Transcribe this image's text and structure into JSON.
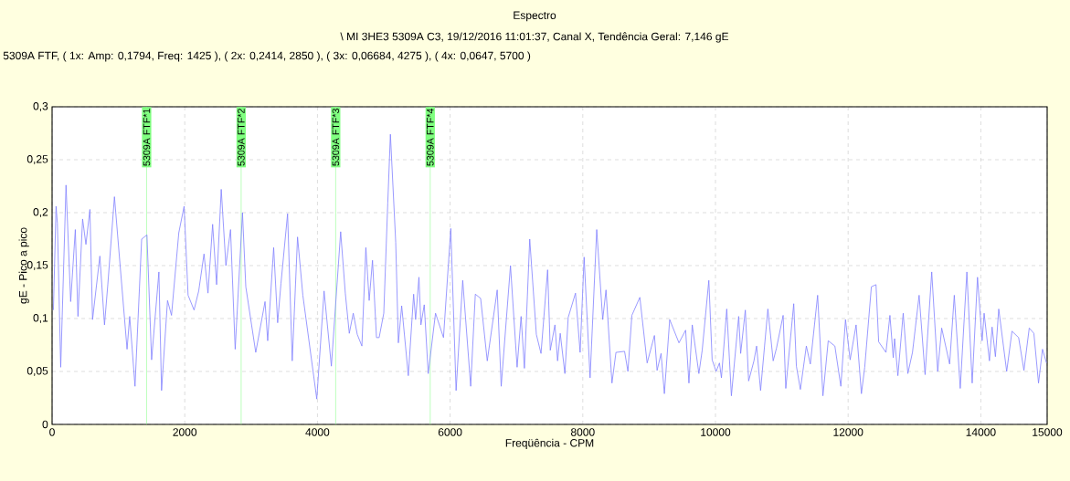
{
  "chart_data": {
    "type": "line",
    "title": "Espectro",
    "subtitle": "\\ MI 3HE3 5309A C3, 19/12/2016 11:01:37, Canal X, Tendência Geral: 7,146 gE",
    "annotations": [
      "5309A FTF, ( 1x: Amp: 0,1794, Freq: 1425 ), ( 2x: 0,2414, 2850 ), ( 3x: 0,06684, 4275 ), ( 4x: 0,0647, 5700 )"
    ],
    "xlabel": "Freqüência - CPM",
    "ylabel": "gE - Pico a pico",
    "color": "#8080ff",
    "grid": true,
    "xlim": [
      0,
      15000
    ],
    "ylim": [
      0,
      0.3
    ],
    "xticks": [
      0,
      2000,
      4000,
      6000,
      8000,
      10000,
      12000,
      14000,
      15000
    ],
    "yticks": [
      0,
      {
        "value": 0.05,
        "label": "0,05"
      },
      {
        "value": 0.1,
        "label": "0,1"
      },
      {
        "value": 0.15,
        "label": "0,15"
      },
      {
        "value": 0.2,
        "label": "0,2"
      },
      {
        "value": 0.25,
        "label": "0,25"
      },
      {
        "value": 0.3,
        "label": "0,3"
      }
    ],
    "ref_lines": [
      {
        "axis": "x",
        "value": 1425,
        "label": "5309A FTF*1",
        "color": "#80ff80"
      },
      {
        "axis": "x",
        "value": 2850,
        "label": "5309A FTF*2",
        "color": "#80ff80"
      },
      {
        "axis": "x",
        "value": 4275,
        "label": "5309A FTF*3",
        "color": "#80ff80"
      },
      {
        "axis": "x",
        "value": 5700,
        "label": "5309A FTF*4",
        "color": "#80ff80"
      }
    ],
    "x": [
      20,
      60,
      80,
      130,
      210,
      280,
      350,
      390,
      460,
      510,
      570,
      610,
      720,
      790,
      840,
      940,
      1130,
      1170,
      1250,
      1350,
      1430,
      1500,
      1610,
      1650,
      1740,
      1800,
      1910,
      1990,
      2050,
      2140,
      2210,
      2290,
      2350,
      2420,
      2480,
      2550,
      2620,
      2690,
      2760,
      2870,
      2920,
      3070,
      3210,
      3250,
      3340,
      3400,
      3450,
      3550,
      3620,
      3700,
      3780,
      3990,
      4100,
      4210,
      4350,
      4420,
      4480,
      4540,
      4600,
      4670,
      4730,
      4780,
      4830,
      4890,
      4930,
      5000,
      5060,
      5100,
      5180,
      5220,
      5270,
      5370,
      5450,
      5480,
      5530,
      5560,
      5610,
      5670,
      5780,
      5900,
      6010,
      6090,
      6190,
      6310,
      6380,
      6460,
      6560,
      6710,
      6770,
      6910,
      7010,
      7070,
      7120,
      7200,
      7300,
      7370,
      7470,
      7510,
      7580,
      7620,
      7660,
      7730,
      7780,
      7890,
      7960,
      8020,
      8110,
      8210,
      8300,
      8350,
      8440,
      8500,
      8630,
      8680,
      8740,
      8860,
      8970,
      9080,
      9120,
      9180,
      9230,
      9310,
      9450,
      9550,
      9600,
      9650,
      9750,
      9800,
      9900,
      9950,
      10010,
      10060,
      10090,
      10170,
      10240,
      10350,
      10380,
      10450,
      10500,
      10580,
      10620,
      10680,
      10790,
      10870,
      10920,
      11020,
      11060,
      11180,
      11220,
      11280,
      11370,
      11430,
      11540,
      11620,
      11700,
      11800,
      11890,
      11960,
      12030,
      12120,
      12200,
      12250,
      12350,
      12420,
      12460,
      12570,
      12630,
      12680,
      12700,
      12750,
      12830,
      12900,
      12970,
      13070,
      13160,
      13260,
      13350,
      13410,
      13530,
      13600,
      13690,
      13790,
      13870,
      13950,
      14020,
      14050,
      14130,
      14170,
      14220,
      14270,
      14390,
      14470,
      14570,
      14650,
      14730,
      14800,
      14870,
      14930,
      14990
    ],
    "values": [
      0.108,
      0.206,
      0.19,
      0.054,
      0.226,
      0.116,
      0.184,
      0.102,
      0.194,
      0.17,
      0.203,
      0.099,
      0.159,
      0.094,
      0.132,
      0.215,
      0.071,
      0.102,
      0.036,
      0.175,
      0.179,
      0.061,
      0.144,
      0.032,
      0.117,
      0.103,
      0.181,
      0.206,
      0.122,
      0.108,
      0.126,
      0.161,
      0.124,
      0.189,
      0.132,
      0.222,
      0.15,
      0.184,
      0.071,
      0.2,
      0.13,
      0.068,
      0.116,
      0.079,
      0.167,
      0.096,
      0.133,
      0.199,
      0.06,
      0.177,
      0.122,
      0.024,
      0.126,
      0.055,
      0.182,
      0.124,
      0.086,
      0.105,
      0.085,
      0.074,
      0.167,
      0.117,
      0.155,
      0.082,
      0.082,
      0.105,
      0.209,
      0.274,
      0.172,
      0.077,
      0.112,
      0.046,
      0.123,
      0.099,
      0.139,
      0.094,
      0.113,
      0.048,
      0.105,
      0.082,
      0.185,
      0.032,
      0.136,
      0.036,
      0.123,
      0.119,
      0.06,
      0.127,
      0.036,
      0.15,
      0.054,
      0.102,
      0.053,
      0.175,
      0.085,
      0.067,
      0.146,
      0.07,
      0.094,
      0.06,
      0.086,
      0.048,
      0.101,
      0.124,
      0.068,
      0.158,
      0.044,
      0.184,
      0.099,
      0.127,
      0.039,
      0.068,
      0.069,
      0.05,
      0.103,
      0.12,
      0.058,
      0.084,
      0.051,
      0.067,
      0.029,
      0.099,
      0.077,
      0.089,
      0.039,
      0.094,
      0.048,
      0.07,
      0.136,
      0.061,
      0.05,
      0.058,
      0.044,
      0.109,
      0.027,
      0.102,
      0.067,
      0.108,
      0.041,
      0.06,
      0.074,
      0.032,
      0.109,
      0.06,
      0.072,
      0.103,
      0.034,
      0.114,
      0.055,
      0.033,
      0.074,
      0.057,
      0.122,
      0.027,
      0.079,
      0.074,
      0.036,
      0.099,
      0.061,
      0.094,
      0.029,
      0.054,
      0.13,
      0.132,
      0.078,
      0.068,
      0.103,
      0.063,
      0.081,
      0.046,
      0.105,
      0.048,
      0.068,
      0.122,
      0.047,
      0.144,
      0.05,
      0.091,
      0.057,
      0.122,
      0.034,
      0.144,
      0.039,
      0.139,
      0.079,
      0.105,
      0.06,
      0.092,
      0.064,
      0.109,
      0.05,
      0.088,
      0.082,
      0.051,
      0.091,
      0.086,
      0.039,
      0.071,
      0.058
    ]
  }
}
